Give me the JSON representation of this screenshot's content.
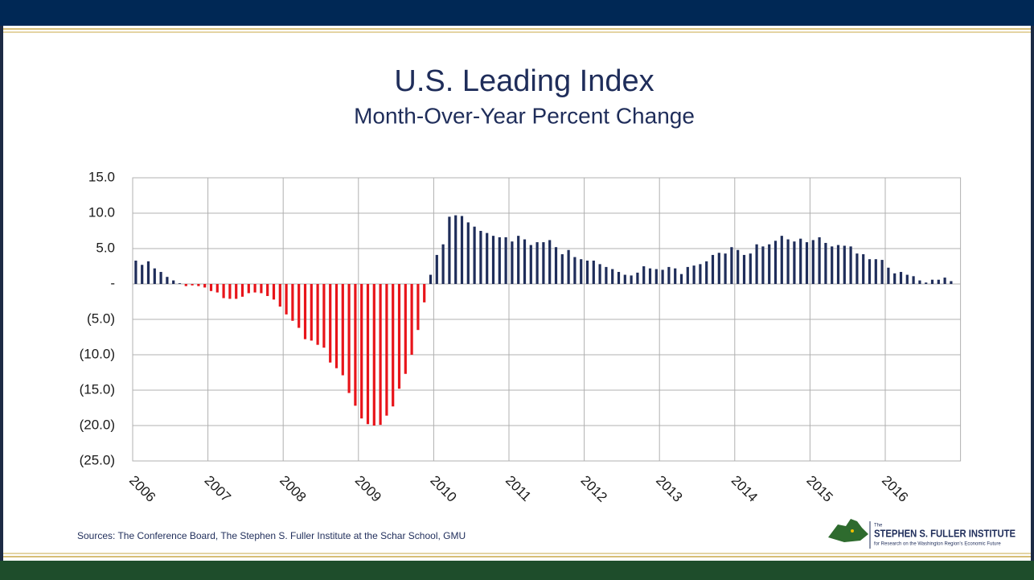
{
  "chart_data": {
    "type": "bar",
    "title": "U.S. Leading Index",
    "subtitle": "Month-Over-Year Percent Change",
    "source": "Sources: The Conference Board, The Stephen S. Fuller Institute at the Schar School, GMU",
    "logo": {
      "small": "The",
      "name": "STEPHEN S. FULLER INSTITUTE",
      "tagline": "for Research on the Washington Region's Economic Future"
    },
    "color": "#1f2d5a",
    "negative_color": "#e8141a",
    "grid": true,
    "ylim": [
      -25,
      15
    ],
    "yticks": [
      {
        "value": -25,
        "label": "(25.0)"
      },
      {
        "value": -20,
        "label": "(20.0)"
      },
      {
        "value": -15,
        "label": "(15.0)"
      },
      {
        "value": -10,
        "label": "(10.0)"
      },
      {
        "value": -5,
        "label": "(5.0)"
      },
      {
        "value": 0,
        "label": "-"
      },
      {
        "value": 5,
        "label": "5.0"
      },
      {
        "value": 10,
        "label": "10.0"
      },
      {
        "value": 15,
        "label": "15.0"
      }
    ],
    "categories": [
      "2006",
      null,
      null,
      null,
      null,
      null,
      null,
      null,
      null,
      null,
      null,
      null,
      "2007",
      null,
      null,
      null,
      null,
      null,
      null,
      null,
      null,
      null,
      null,
      null,
      "2008",
      null,
      null,
      null,
      null,
      null,
      null,
      null,
      null,
      null,
      null,
      null,
      "2009",
      null,
      null,
      null,
      null,
      null,
      null,
      null,
      null,
      null,
      null,
      null,
      "2010",
      null,
      null,
      null,
      null,
      null,
      null,
      null,
      null,
      null,
      null,
      null,
      "2011",
      null,
      null,
      null,
      null,
      null,
      null,
      null,
      null,
      null,
      null,
      null,
      "2012",
      null,
      null,
      null,
      null,
      null,
      null,
      null,
      null,
      null,
      null,
      null,
      "2013",
      null,
      null,
      null,
      null,
      null,
      null,
      null,
      null,
      null,
      null,
      null,
      "2014",
      null,
      null,
      null,
      null,
      null,
      null,
      null,
      null,
      null,
      null,
      null,
      "2015",
      null,
      null,
      null,
      null,
      null,
      null,
      null,
      null,
      null,
      null,
      null,
      "2016",
      null,
      null,
      null,
      null,
      null,
      null,
      null,
      null,
      null,
      null
    ],
    "values": [
      3.3,
      2.7,
      3.2,
      2.2,
      1.7,
      1.0,
      0.5,
      0.1,
      -0.3,
      -0.2,
      -0.3,
      -0.5,
      -1.0,
      -1.2,
      -2.0,
      -2.1,
      -2.1,
      -1.8,
      -1.3,
      -1.2,
      -1.3,
      -1.7,
      -2.2,
      -3.2,
      -4.3,
      -5.2,
      -6.2,
      -7.8,
      -8.0,
      -8.6,
      -9.0,
      -11.1,
      -11.9,
      -12.9,
      -15.4,
      -17.2,
      -19.0,
      -19.8,
      -20.0,
      -19.9,
      -18.6,
      -17.3,
      -14.8,
      -12.7,
      -10.0,
      -6.5,
      -2.6,
      1.3,
      4.1,
      5.6,
      9.5,
      9.7,
      9.6,
      8.7,
      8.1,
      7.5,
      7.2,
      6.8,
      6.6,
      6.6,
      6.0,
      6.8,
      6.3,
      5.5,
      5.9,
      5.9,
      6.2,
      5.2,
      4.2,
      4.8,
      3.8,
      3.5,
      3.3,
      3.3,
      2.8,
      2.4,
      2.1,
      1.7,
      1.3,
      1.2,
      1.6,
      2.5,
      2.2,
      2.1,
      2.0,
      2.4,
      2.2,
      1.4,
      2.4,
      2.6,
      2.8,
      3.2,
      4.1,
      4.4,
      4.3,
      5.2,
      4.8,
      4.1,
      4.3,
      5.6,
      5.3,
      5.6,
      6.1,
      6.8,
      6.3,
      6.0,
      6.4,
      5.9,
      6.2,
      6.6,
      5.8,
      5.3,
      5.5,
      5.4,
      5.3,
      4.3,
      4.2,
      3.5,
      3.5,
      3.4,
      2.3,
      1.5,
      1.7,
      1.3,
      1.1,
      0.5,
      0.2,
      0.6,
      0.6,
      0.9,
      0.4
    ]
  }
}
